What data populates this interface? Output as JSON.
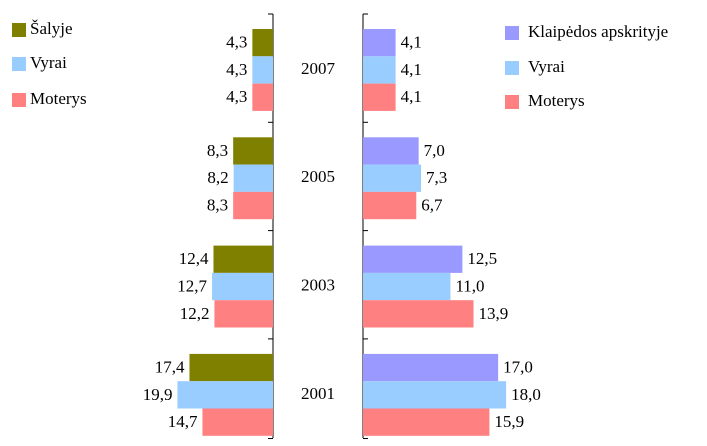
{
  "chart_data": [
    {
      "type": "bar",
      "orientation": "horizontal",
      "direction": "left",
      "categories": [
        "2007",
        "2005",
        "2003",
        "2001"
      ],
      "xlim": [
        0,
        20
      ],
      "series": [
        {
          "name": "Šalyje",
          "color": "#808000",
          "values": [
            4.3,
            8.3,
            12.4,
            17.4
          ],
          "value_labels": [
            "4,3",
            "8,3",
            "12,4",
            "17,4"
          ]
        },
        {
          "name": "Vyrai",
          "color": "#99ccff",
          "values": [
            4.3,
            8.2,
            12.7,
            19.9
          ],
          "value_labels": [
            "4,3",
            "8,2",
            "12,7",
            "19,9"
          ]
        },
        {
          "name": "Moterys",
          "color": "#ff8080",
          "values": [
            4.3,
            8.3,
            12.2,
            14.7
          ],
          "value_labels": [
            "4,3",
            "8,3",
            "12,2",
            "14,7"
          ]
        }
      ]
    },
    {
      "type": "bar",
      "orientation": "horizontal",
      "direction": "right",
      "xlim": [
        0,
        20
      ],
      "series": [
        {
          "name": "Klaipėdos apskrityje",
          "color": "#9999ff",
          "values": [
            4.1,
            7.0,
            12.5,
            17.0
          ],
          "value_labels": [
            "4,1",
            "7,0",
            "12,5",
            "17,0"
          ]
        },
        {
          "name": "Vyrai",
          "color": "#99ccff",
          "values": [
            4.1,
            7.3,
            11.0,
            18.0
          ],
          "value_labels": [
            "4,1",
            "7,3",
            "11,0",
            "18,0"
          ]
        },
        {
          "name": "Moterys",
          "color": "#ff8080",
          "values": [
            4.1,
            6.7,
            13.9,
            15.9
          ],
          "value_labels": [
            "4,1",
            "6,7",
            "13,9",
            "15,9"
          ]
        }
      ]
    }
  ]
}
